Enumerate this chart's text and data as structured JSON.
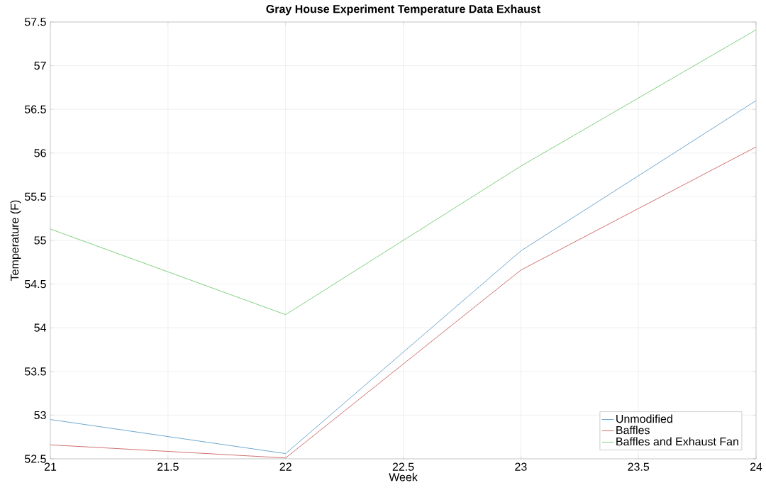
{
  "chart_data": {
    "type": "line",
    "title": "Gray House Experiment Temperature Data Exhaust",
    "xlabel": "Week",
    "ylabel": "Temperature (F)",
    "x": [
      21,
      22,
      23,
      24
    ],
    "series": [
      {
        "name": "Unmodified",
        "color": "#6fa8d0",
        "values": [
          52.95,
          52.56,
          54.88,
          56.6
        ]
      },
      {
        "name": "Baffles",
        "color": "#d07070",
        "values": [
          52.66,
          52.51,
          54.66,
          56.07
        ]
      },
      {
        "name": "Baffles and Exhaust Fan",
        "color": "#80d080",
        "values": [
          55.13,
          54.15,
          55.85,
          57.41
        ]
      }
    ],
    "xlim": [
      21,
      24
    ],
    "ylim": [
      52.5,
      57.5
    ],
    "xticks": [
      21,
      21.5,
      22,
      22.5,
      23,
      23.5,
      24
    ],
    "yticks": [
      52.5,
      53,
      53.5,
      54,
      54.5,
      55,
      55.5,
      56,
      56.5,
      57,
      57.5
    ],
    "grid": true,
    "legend": "bottom right",
    "marker": "none",
    "line_style": "solid"
  }
}
